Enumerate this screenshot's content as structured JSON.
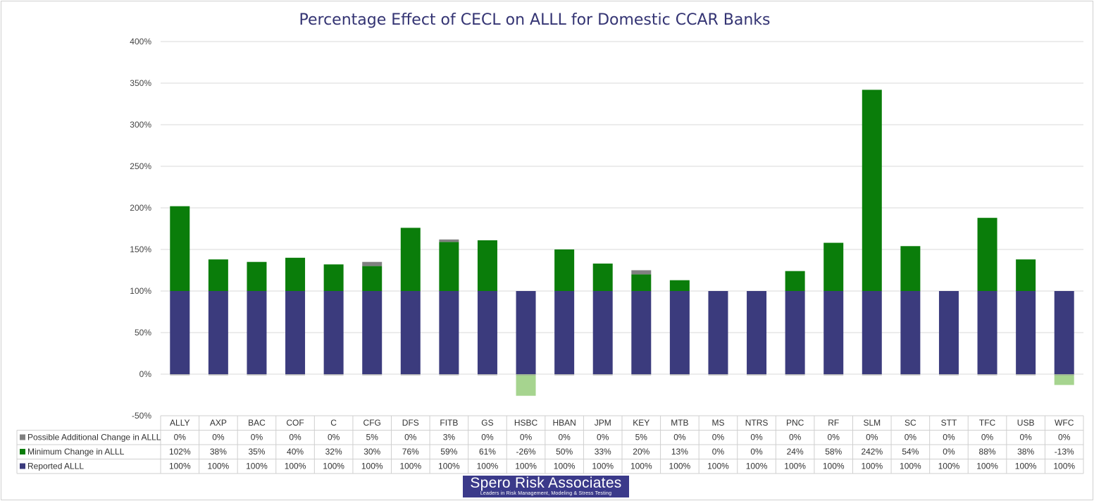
{
  "chart_data": {
    "type": "bar",
    "stacked": true,
    "title": "Percentage Effect of CECL on ALLL for Domestic CCAR Banks",
    "categories": [
      "ALLY",
      "AXP",
      "BAC",
      "COF",
      "C",
      "CFG",
      "DFS",
      "FITB",
      "GS",
      "HSBC",
      "HBAN",
      "JPM",
      "KEY",
      "MTB",
      "MS",
      "NTRS",
      "PNC",
      "RF",
      "SLM",
      "SC",
      "STT",
      "TFC",
      "USB",
      "WFC"
    ],
    "series": [
      {
        "name": "Reported ALLL",
        "color": "#3b3b7d",
        "values": [
          100,
          100,
          100,
          100,
          100,
          100,
          100,
          100,
          100,
          100,
          100,
          100,
          100,
          100,
          100,
          100,
          100,
          100,
          100,
          100,
          100,
          100,
          100,
          100
        ],
        "labels": [
          "100%",
          "100%",
          "100%",
          "100%",
          "100%",
          "100%",
          "100%",
          "100%",
          "100%",
          "100%",
          "100%",
          "100%",
          "100%",
          "100%",
          "100%",
          "100%",
          "100%",
          "100%",
          "100%",
          "100%",
          "100%",
          "100%",
          "100%",
          "100%"
        ]
      },
      {
        "name": "Minimum Change in ALLL",
        "color": "#0a7d0a",
        "negative_color": "#a6d48f",
        "values": [
          102,
          38,
          35,
          40,
          32,
          30,
          76,
          59,
          61,
          -26,
          50,
          33,
          20,
          13,
          0,
          0,
          24,
          58,
          242,
          54,
          0,
          88,
          38,
          -13
        ],
        "labels": [
          "102%",
          "38%",
          "35%",
          "40%",
          "32%",
          "30%",
          "76%",
          "59%",
          "61%",
          "-26%",
          "50%",
          "33%",
          "20%",
          "13%",
          "0%",
          "0%",
          "24%",
          "58%",
          "242%",
          "54%",
          "0%",
          "88%",
          "38%",
          "-13%"
        ]
      },
      {
        "name": "Possible Additional Change in ALLL",
        "color": "#808080",
        "values": [
          0,
          0,
          0,
          0,
          0,
          5,
          0,
          3,
          0,
          0,
          0,
          0,
          5,
          0,
          0,
          0,
          0,
          0,
          0,
          0,
          0,
          0,
          0,
          0
        ],
        "labels": [
          "0%",
          "0%",
          "0%",
          "0%",
          "0%",
          "5%",
          "0%",
          "3%",
          "0%",
          "0%",
          "0%",
          "0%",
          "5%",
          "0%",
          "0%",
          "0%",
          "0%",
          "0%",
          "0%",
          "0%",
          "0%",
          "0%",
          "0%",
          "0%"
        ]
      }
    ],
    "ylim": [
      -50,
      400
    ],
    "yticks": [
      400,
      350,
      300,
      250,
      200,
      150,
      100,
      50,
      0,
      -50
    ],
    "ytick_labels": [
      "400%",
      "350%",
      "300%",
      "250%",
      "200%",
      "150%",
      "100%",
      "50%",
      "0%",
      "-50%"
    ],
    "grid": true,
    "legend": "data-table"
  },
  "logo": {
    "name": "Spero Risk Associates",
    "tagline": "Leaders in Risk Management, Modeling & Stress Testing"
  }
}
